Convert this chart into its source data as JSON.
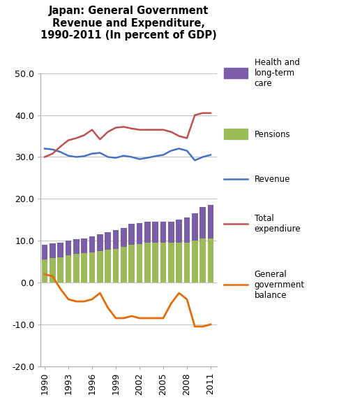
{
  "title": "Japan: General Government\nRevenue and Expenditure,\n1990-2011 (In percent of GDP)",
  "years": [
    1990,
    1991,
    1992,
    1993,
    1994,
    1995,
    1996,
    1997,
    1998,
    1999,
    2000,
    2001,
    2002,
    2003,
    2004,
    2005,
    2006,
    2007,
    2008,
    2009,
    2010,
    2011
  ],
  "revenue": [
    32.0,
    31.8,
    31.2,
    30.3,
    30.0,
    30.2,
    30.8,
    31.0,
    30.0,
    29.8,
    30.3,
    30.0,
    29.5,
    29.8,
    30.2,
    30.5,
    31.5,
    32.0,
    31.5,
    29.2,
    30.0,
    30.5
  ],
  "total_expenditure": [
    30.0,
    30.8,
    32.5,
    34.0,
    34.5,
    35.2,
    36.5,
    34.2,
    36.0,
    37.0,
    37.2,
    36.8,
    36.5,
    36.5,
    36.5,
    36.5,
    36.0,
    35.0,
    34.5,
    40.0,
    40.5,
    40.5
  ],
  "general_balance": [
    2.0,
    1.5,
    -1.5,
    -4.0,
    -4.5,
    -4.5,
    -4.0,
    -2.5,
    -6.0,
    -8.5,
    -8.5,
    -8.0,
    -8.5,
    -8.5,
    -8.5,
    -8.5,
    -5.0,
    -2.5,
    -4.0,
    -10.5,
    -10.5,
    -10.0
  ],
  "pensions": [
    5.5,
    5.8,
    6.0,
    6.5,
    6.8,
    7.0,
    7.2,
    7.5,
    7.8,
    8.0,
    8.5,
    9.0,
    9.2,
    9.5,
    9.5,
    9.5,
    9.5,
    9.5,
    9.5,
    10.0,
    10.5,
    10.5
  ],
  "health": [
    3.5,
    3.5,
    3.5,
    3.5,
    3.5,
    3.5,
    3.8,
    4.0,
    4.2,
    4.5,
    4.5,
    5.0,
    5.0,
    5.0,
    5.0,
    5.0,
    5.0,
    5.5,
    6.0,
    6.5,
    7.5,
    8.0
  ],
  "revenue_color": "#4472C4",
  "expenditure_color": "#C0504D",
  "balance_color": "#E36C09",
  "pensions_color": "#9BBB59",
  "health_color": "#7B5EA7",
  "ylim": [
    -20.0,
    50.0
  ],
  "yticks": [
    -20.0,
    -10.0,
    0.0,
    10.0,
    20.0,
    30.0,
    40.0,
    50.0
  ],
  "xticks": [
    1990,
    1993,
    1996,
    1999,
    2002,
    2005,
    2008,
    2011
  ],
  "figsize": [
    4.86,
    5.82
  ],
  "dpi": 100
}
